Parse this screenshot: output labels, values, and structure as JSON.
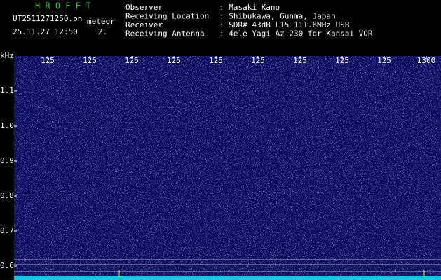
{
  "header": {
    "app_title": "H R O F F T",
    "file_name": "UT2511271250.pn",
    "mode": "meteor",
    "timestamp": "25.11.27 12:50",
    "counter": "2.",
    "info": [
      {
        "label": "Observer",
        "value": ": Masaki Kano"
      },
      {
        "label": "Receiving Location",
        "value": ": Shibukawa, Gunma, Japan"
      },
      {
        "label": "Receiver",
        "value": ": SDR# 43dB L15 111.6MHz USB"
      },
      {
        "label": "Receiving Antenna",
        "value": ": 4ele Yagi Az 230 for Kansai VOR"
      }
    ]
  },
  "spectrogram": {
    "unit_label": "kHz",
    "time_ticks": [
      "125",
      "125",
      "125",
      "125",
      "125",
      "125",
      "125",
      "125",
      "125",
      "1300"
    ],
    "freq_ticks": [
      "1.1",
      "1.0",
      "0.9",
      "0.8",
      "0.7",
      "0.6"
    ]
  }
}
